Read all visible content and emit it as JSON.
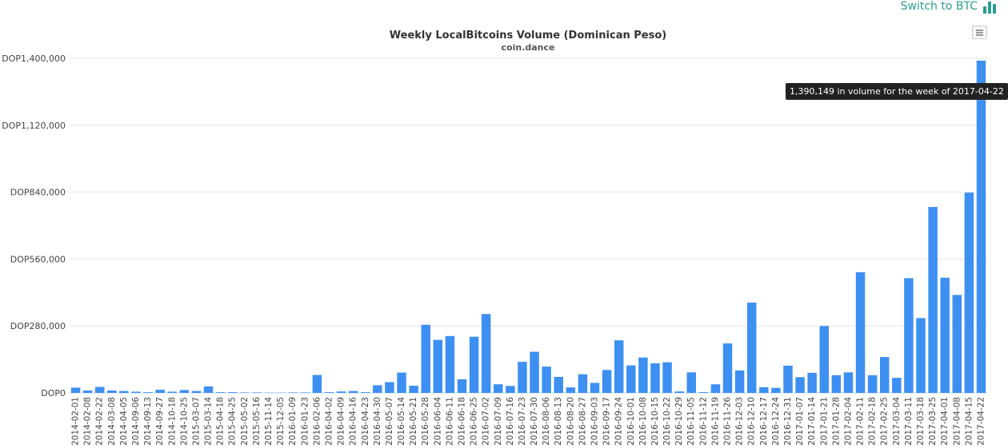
{
  "header": {
    "switch_label": "Switch to BTC",
    "switch_icon": "bar-chart-icon",
    "accent": "#2a9d8f"
  },
  "tooltip": {
    "text": "1,390,149 in volume for the week of 2017-04-22"
  },
  "chart_data": {
    "type": "bar",
    "title": "Weekly LocalBitcoins Volume (Dominican Peso)",
    "subtitle": "coin.dance",
    "bar_color": "#3d8ff2",
    "ylim": [
      0,
      1400000
    ],
    "yticks": [
      0,
      280000,
      560000,
      840000,
      1120000,
      1400000
    ],
    "ytick_labels": [
      "DOP0",
      "DOP280,000",
      "DOP560,000",
      "DOP840,000",
      "DOP1,120,000",
      "DOP1,400,000"
    ],
    "tick_labels": [
      "2014-02-01",
      "2014-02-08",
      "2014-02-22",
      "2014-03-08",
      "2014-04-05",
      "2014-09-06",
      "2014-09-13",
      "2014-09-27",
      "2014-10-18",
      "2014-10-25",
      "2015-03-07",
      "2015-03-14",
      "2015-04-18",
      "2015-04-25",
      "2015-05-02",
      "2015-05-16",
      "2015-11-14",
      "2015-12-05",
      "2016-01-09",
      "2016-01-23",
      "2016-02-06",
      "2016-04-02",
      "2016-04-09",
      "2016-04-16",
      "2016-04-23",
      "2016-04-30",
      "2016-05-07",
      "2016-05-14",
      "2016-05-21",
      "2016-05-28",
      "2016-06-04",
      "2016-06-11",
      "2016-06-18",
      "2016-06-25",
      "2016-07-02",
      "2016-07-09",
      "2016-07-16",
      "2016-07-23",
      "2016-07-30",
      "2016-08-06",
      "2016-08-13",
      "2016-08-20",
      "2016-08-27",
      "2016-09-03",
      "2016-09-17",
      "2016-09-24",
      "2016-10-01",
      "2016-10-08",
      "2016-10-15",
      "2016-10-22",
      "2016-10-29",
      "2016-11-05",
      "2016-11-12",
      "2016-11-19",
      "2016-11-26",
      "2016-12-03",
      "2016-12-10",
      "2016-12-17",
      "2016-12-24",
      "2016-12-31",
      "2017-01-07",
      "2017-01-14",
      "2017-01-21",
      "2017-01-28",
      "2017-02-04",
      "2017-02-11",
      "2017-02-18",
      "2017-02-25",
      "2017-03-04",
      "2017-03-11",
      "2017-03-18",
      "2017-03-25",
      "2017-04-01",
      "2017-04-08",
      "2017-04-15",
      "2017-04-22"
    ],
    "values": [
      22000,
      10000,
      25000,
      10000,
      8000,
      5000,
      3000,
      13000,
      5000,
      12000,
      8000,
      27000,
      3000,
      3000,
      2000,
      2000,
      1000,
      1000,
      2000,
      2000,
      75000,
      3000,
      6000,
      8000,
      3000,
      32000,
      45000,
      85000,
      30000,
      285000,
      222000,
      238000,
      57000,
      235000,
      330000,
      36000,
      29000,
      130000,
      172000,
      110000,
      67000,
      23000,
      78000,
      42000,
      96000,
      220000,
      115000,
      148000,
      124000,
      128000,
      6000,
      86000,
      3000,
      36000,
      207000,
      94000,
      378000,
      24000,
      21000,
      114000,
      66000,
      84000,
      280000,
      74000,
      86000,
      505000,
      74000,
      150000,
      63000,
      480000,
      313000,
      778000,
      482000,
      410000,
      838000,
      1390149
    ]
  }
}
